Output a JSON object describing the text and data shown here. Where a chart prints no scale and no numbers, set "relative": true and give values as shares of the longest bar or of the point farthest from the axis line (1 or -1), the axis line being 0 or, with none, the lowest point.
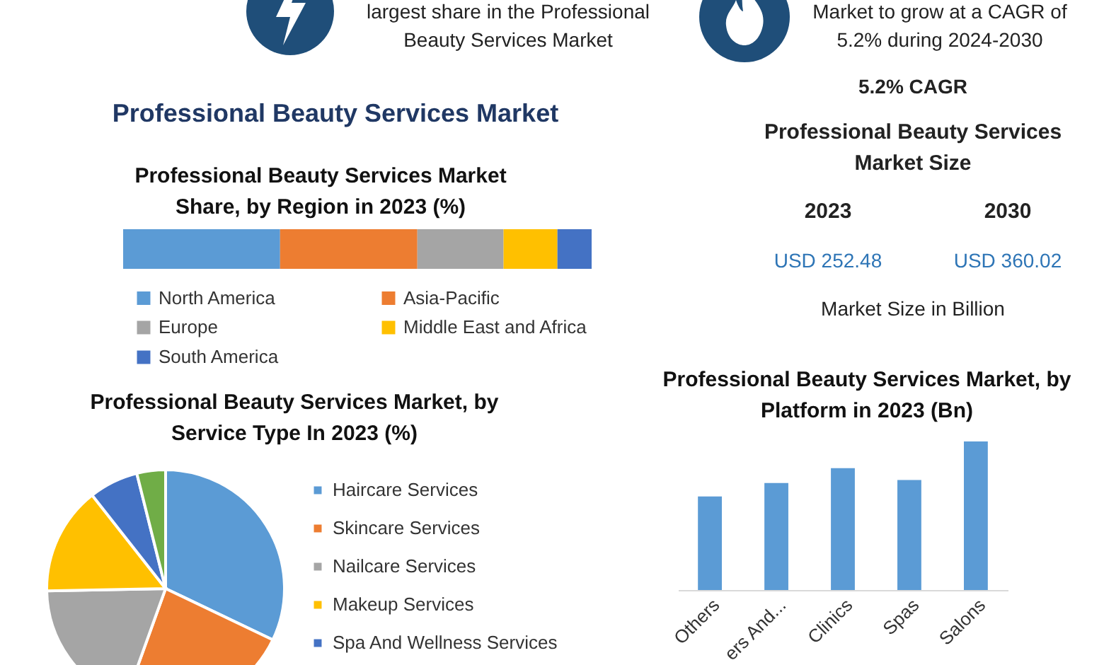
{
  "chart_data": [
    {
      "type": "other",
      "annotations": [
        "largest share in the Professional Beauty Services Market",
        "Market to grow at a CAGR of 5.2% during 2024-2030",
        "Professional Beauty Services Market",
        "5.2% CAGR",
        "Professional Beauty Services Market Size",
        "2023",
        "2030",
        "USD 252.48",
        "USD 360.02",
        "Market Size in Billion"
      ]
    },
    {
      "type": "bar",
      "title": "Professional Beauty Services Market Share, by Region in 2023 (%)",
      "orientation": "horizontal",
      "stacked": true,
      "relative": true,
      "categories": [
        null
      ],
      "legend": "bottom",
      "series": [
        {
          "name": "North America",
          "color": "#5b9bd5",
          "values": [
            0.335
          ]
        },
        {
          "name": "Asia-Pacific",
          "color": "#ed7d31",
          "values": [
            0.293
          ]
        },
        {
          "name": "Europe",
          "color": "#a5a5a5",
          "values": [
            0.184
          ]
        },
        {
          "name": "Middle East and Africa",
          "color": "#ffc000",
          "values": [
            0.115
          ]
        },
        {
          "name": "South America",
          "color": "#4472c4",
          "values": [
            0.073
          ]
        }
      ]
    },
    {
      "type": "pie",
      "title": "Professional Beauty Services Market, by Service Type In 2023 (%)",
      "legend": "right",
      "categories": [
        "Haircare Services",
        "Skincare Services",
        "Nailcare Services",
        "Makeup Services",
        "Spa And Wellness Services",
        null
      ],
      "values": [
        32.1,
        23.4,
        19.2,
        14.7,
        6.7,
        3.9
      ],
      "colors": [
        "#5b9bd5",
        "#ed7d31",
        "#a5a5a5",
        "#ffc000",
        "#4472c4",
        "#70ad47"
      ]
    },
    {
      "type": "bar",
      "title": "Professional Beauty Services Market, by Platform in 2023 (Bn)",
      "relative": true,
      "categories": [
        "Others",
        "ers And...",
        "Clinics",
        "Spas",
        "Salons"
      ],
      "series": [
        {
          "color": "#5b9bd5",
          "values": [
            0.63,
            0.72,
            0.82,
            0.74,
            1
          ]
        }
      ]
    }
  ]
}
